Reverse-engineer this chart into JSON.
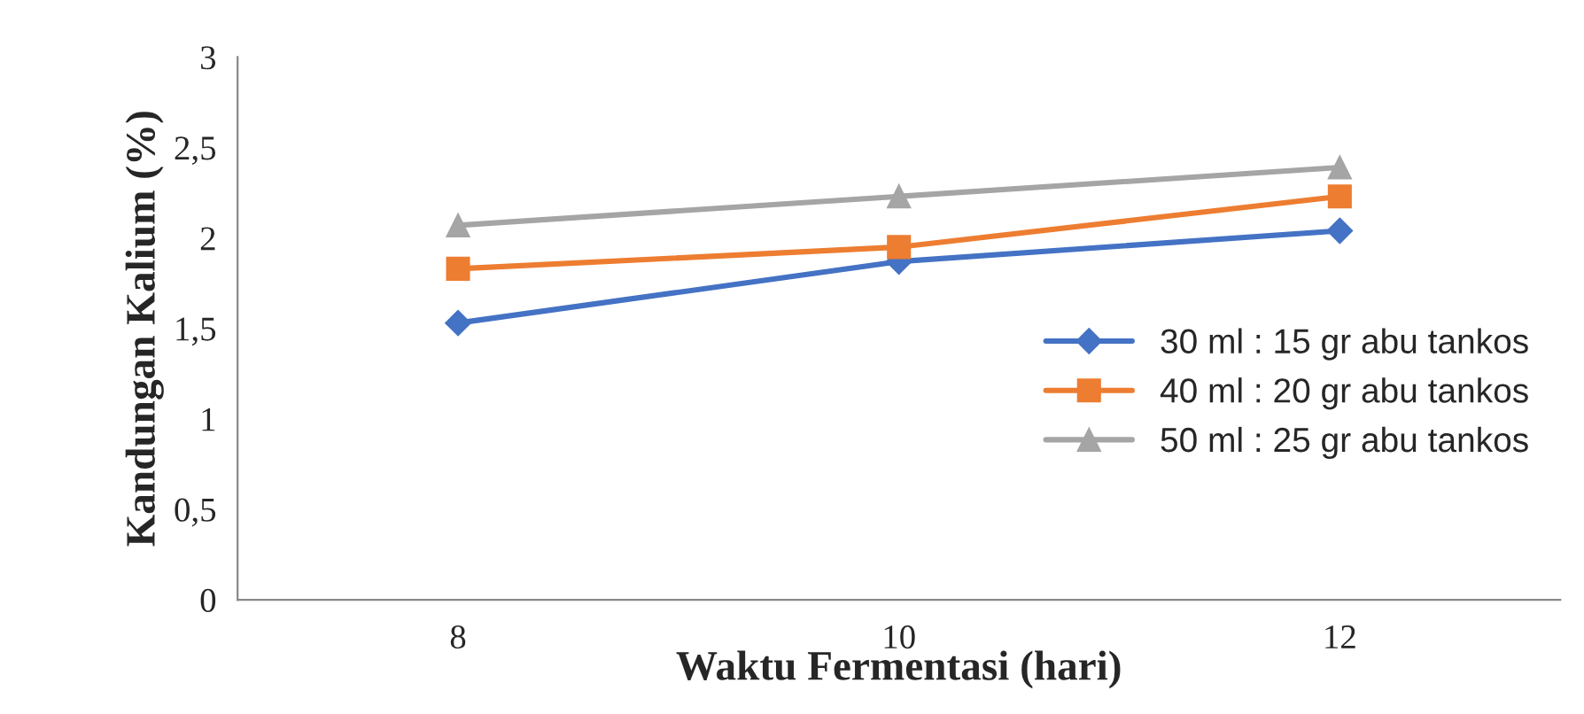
{
  "chart_data": {
    "type": "line",
    "xlabel": "Waktu Fermentasi (hari)",
    "ylabel": "Kandungan Kalium (%)",
    "categories": [
      "8",
      "10",
      "12"
    ],
    "series": [
      {
        "name": "30 ml : 15 gr abu tankos",
        "color": "#4472c4",
        "marker": "diamond",
        "values": [
          1.53,
          1.87,
          2.04
        ]
      },
      {
        "name": "40 ml : 20 gr abu tankos",
        "color": "#ed7d31",
        "marker": "square",
        "values": [
          1.83,
          1.95,
          2.23
        ]
      },
      {
        "name": "50 ml : 25 gr abu tankos",
        "color": "#a5a5a5",
        "marker": "triangle",
        "values": [
          2.07,
          2.23,
          2.39
        ]
      }
    ],
    "ylim": [
      0,
      3
    ],
    "yticks": [
      {
        "value": 0,
        "label": "0"
      },
      {
        "value": 0.5,
        "label": "0,5"
      },
      {
        "value": 1,
        "label": "1"
      },
      {
        "value": 1.5,
        "label": "1,5"
      },
      {
        "value": 2,
        "label": "2"
      },
      {
        "value": 2.5,
        "label": "2,5"
      },
      {
        "value": 3,
        "label": "3"
      }
    ],
    "grid": false,
    "legend": "right"
  }
}
